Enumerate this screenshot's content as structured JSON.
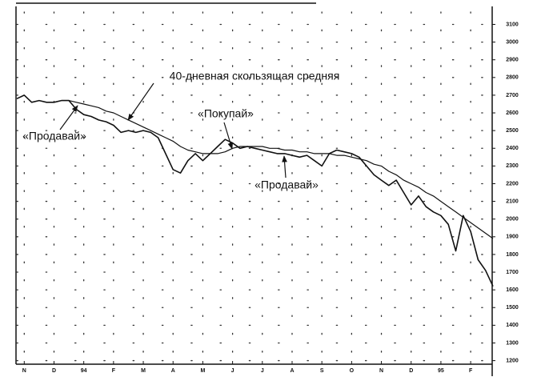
{
  "chart_data": {
    "type": "line",
    "categories": [
      null,
      "N",
      null,
      null,
      null,
      "D",
      null,
      null,
      null,
      "94",
      null,
      null,
      null,
      "F",
      null,
      null,
      null,
      "M",
      null,
      null,
      null,
      "A",
      null,
      null,
      null,
      "M",
      null,
      null,
      null,
      "J",
      null,
      null,
      null,
      "J",
      null,
      null,
      null,
      "A",
      null,
      null,
      null,
      "S",
      null,
      null,
      null,
      "O",
      null,
      null,
      null,
      "N",
      null,
      null,
      null,
      "D",
      null,
      null,
      null,
      "95",
      null,
      null,
      null,
      "F",
      null,
      null,
      null
    ],
    "series": [
      {
        "color": "#111111",
        "values": [
          2680,
          2700,
          2660,
          2670,
          2660,
          2660,
          2670,
          2670,
          2620,
          2590,
          2580,
          2560,
          2550,
          2530,
          2490,
          2500,
          2490,
          2500,
          2490,
          2460,
          2370,
          2280,
          2260,
          2330,
          2370,
          2330,
          2370,
          2410,
          2450,
          2430,
          2400,
          2410,
          2400,
          2390,
          2380,
          2370,
          2370,
          2360,
          2350,
          2360,
          2330,
          2300,
          2370,
          2390,
          2380,
          2370,
          2350,
          2300,
          2250,
          2220,
          2190,
          2220,
          2150,
          2080,
          2130,
          2070,
          2040,
          2020,
          1970,
          1820,
          2020,
          1930,
          1770,
          1710,
          1620
        ]
      },
      {
        "color": "#111111",
        "values": [
          null,
          null,
          null,
          null,
          null,
          null,
          null,
          2670,
          2660,
          2650,
          2640,
          2630,
          2610,
          2600,
          2580,
          2560,
          2540,
          2520,
          2500,
          2480,
          2460,
          2440,
          2410,
          2390,
          2380,
          2370,
          2370,
          2370,
          2380,
          2400,
          2410,
          2410,
          2410,
          2410,
          2400,
          2400,
          2390,
          2390,
          2380,
          2380,
          2370,
          2370,
          2370,
          2360,
          2360,
          2350,
          2340,
          2330,
          2310,
          2300,
          2270,
          2250,
          2220,
          2200,
          2180,
          2150,
          2130,
          2100,
          2070,
          2040,
          2010,
          1980,
          1950,
          1920,
          1890
        ]
      }
    ],
    "ylim": [
      1180,
      3170
    ],
    "yticks": [
      3100,
      3000,
      2900,
      2800,
      2700,
      2600,
      2500,
      2400,
      2300,
      2200,
      2100,
      2000,
      1900,
      1800,
      1700,
      1600,
      1500,
      1400,
      1300,
      1200
    ],
    "grid": true,
    "annotations": [
      "40-дневная скользящая средняя",
      "«Продавай»",
      "«Покупай»",
      "«Продавай»"
    ]
  }
}
